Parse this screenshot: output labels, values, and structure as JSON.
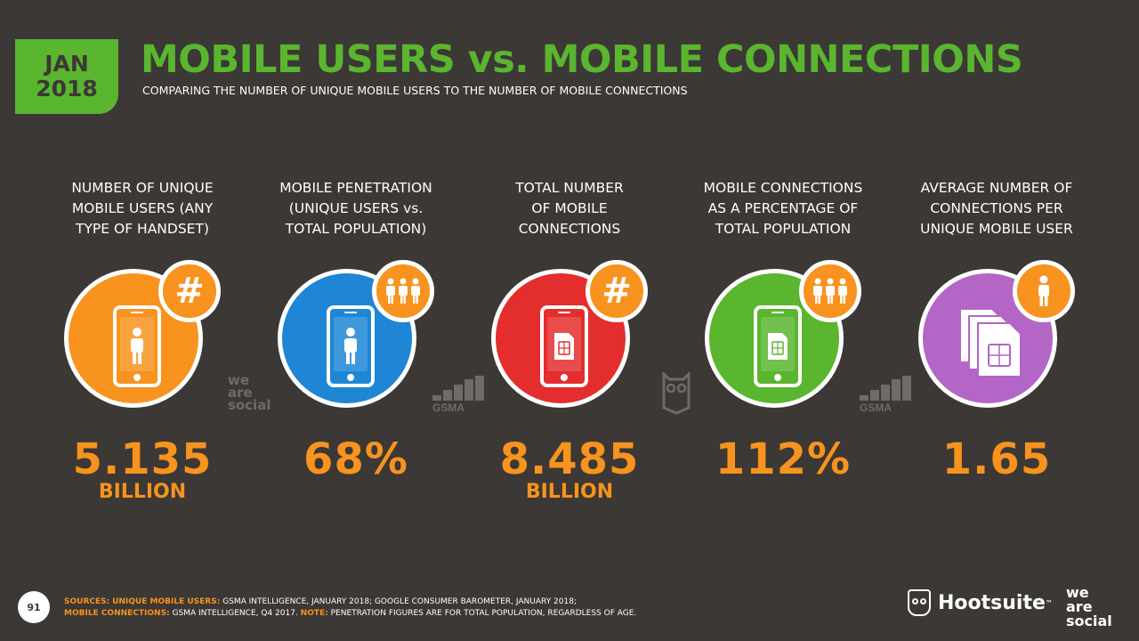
{
  "header": {
    "date_line1": "JAN",
    "date_line2": "2018",
    "title": "MOBILE USERS vs. MOBILE CONNECTIONS",
    "subtitle": "COMPARING THE NUMBER OF UNIQUE MOBILE USERS TO THE NUMBER OF MOBILE CONNECTIONS"
  },
  "colors": {
    "background": "#3b3835",
    "accent_green": "#5ab52f",
    "value_orange": "#f7931e"
  },
  "stats": [
    {
      "label_lines": [
        "NUMBER OF UNIQUE",
        "MOBILE USERS (ANY",
        "TYPE OF HANDSET)"
      ],
      "value": "5.135",
      "unit": "BILLION",
      "circle_color": "#f7931e",
      "icon": "phone-person-icon",
      "badge_icon": "hash-icon",
      "badge_text": "#"
    },
    {
      "label_lines": [
        "MOBILE PENETRATION",
        "(UNIQUE USERS vs.",
        "TOTAL POPULATION)"
      ],
      "value": "68%",
      "unit": "",
      "circle_color": "#1f86d6",
      "icon": "phone-person-icon",
      "badge_icon": "people-group-icon",
      "badge_text": ""
    },
    {
      "label_lines": [
        "TOTAL NUMBER",
        "OF MOBILE",
        "CONNECTIONS"
      ],
      "value": "8.485",
      "unit": "BILLION",
      "circle_color": "#e42d2d",
      "icon": "phone-sim-icon",
      "badge_icon": "hash-icon",
      "badge_text": "#"
    },
    {
      "label_lines": [
        "MOBILE CONNECTIONS",
        "AS A PERCENTAGE OF",
        "TOTAL POPULATION"
      ],
      "value": "112%",
      "unit": "",
      "circle_color": "#5ab52f",
      "icon": "phone-sim-icon",
      "badge_icon": "people-group-icon",
      "badge_text": ""
    },
    {
      "label_lines": [
        "AVERAGE NUMBER OF",
        "CONNECTIONS PER",
        "UNIQUE MOBILE USER"
      ],
      "value": "1.65",
      "unit": "",
      "circle_color": "#b366c5",
      "icon": "sim-cards-icon",
      "badge_icon": "person-icon",
      "badge_text": ""
    }
  ],
  "source_logos": {
    "was_small": "we are social",
    "gsma": "GSMA"
  },
  "footer": {
    "page_number": "91",
    "sources_label": "SOURCES:",
    "sources_users_label": "UNIQUE MOBILE USERS:",
    "sources_users_text": "GSMA INTELLIGENCE, JANUARY 2018; GOOGLE CONSUMER BAROMETER, JANUARY 2018;",
    "sources_conn_label": "MOBILE CONNECTIONS:",
    "sources_conn_text": "GSMA INTELLIGENCE, Q4 2017.",
    "note_label": "NOTE:",
    "note_text": "PENETRATION FIGURES ARE FOR TOTAL POPULATION, REGARDLESS OF AGE.",
    "hootsuite": "Hootsuite",
    "was_line1": "we",
    "was_line2": "are",
    "was_line3": "social"
  }
}
